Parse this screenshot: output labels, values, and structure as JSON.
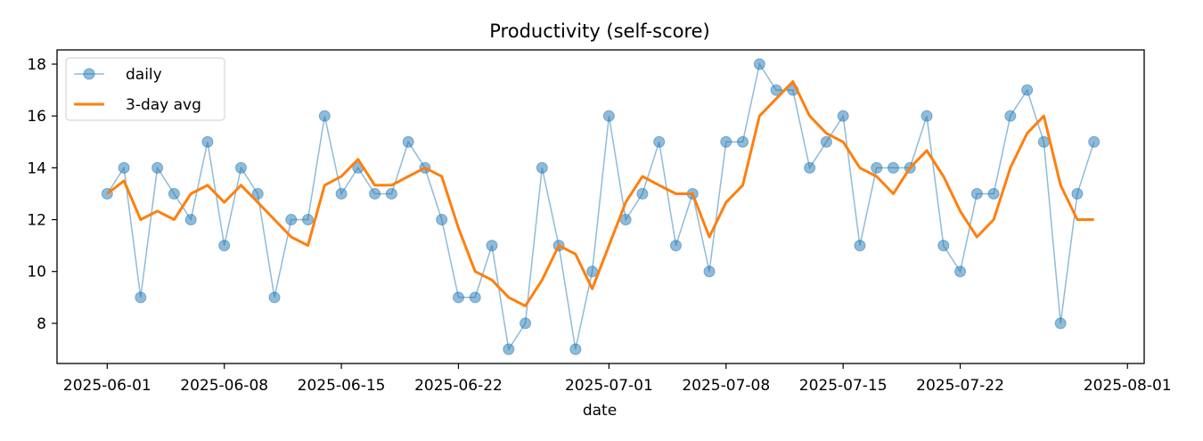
{
  "chart_data": {
    "type": "line",
    "title": "Productivity (self-score)",
    "xlabel": "date",
    "ylabel": "",
    "x_range": [
      "2025-05-29",
      "2025-08-02"
    ],
    "ylim": [
      6.45,
      18.55
    ],
    "x_ticks": [
      "2025-06-01",
      "2025-06-08",
      "2025-06-15",
      "2025-06-22",
      "2025-07-01",
      "2025-07-08",
      "2025-07-15",
      "2025-07-22",
      "2025-08-01"
    ],
    "y_ticks": [
      8,
      10,
      12,
      14,
      16,
      18
    ],
    "grid": false,
    "legend_position": "top-left",
    "x": [
      "2025-06-01",
      "2025-06-02",
      "2025-06-03",
      "2025-06-04",
      "2025-06-05",
      "2025-06-06",
      "2025-06-07",
      "2025-06-08",
      "2025-06-09",
      "2025-06-10",
      "2025-06-11",
      "2025-06-12",
      "2025-06-13",
      "2025-06-14",
      "2025-06-15",
      "2025-06-16",
      "2025-06-17",
      "2025-06-18",
      "2025-06-19",
      "2025-06-20",
      "2025-06-21",
      "2025-06-22",
      "2025-06-23",
      "2025-06-24",
      "2025-06-25",
      "2025-06-26",
      "2025-06-27",
      "2025-06-28",
      "2025-06-29",
      "2025-06-30",
      "2025-07-01",
      "2025-07-02",
      "2025-07-03",
      "2025-07-04",
      "2025-07-05",
      "2025-07-06",
      "2025-07-07",
      "2025-07-08",
      "2025-07-09",
      "2025-07-10",
      "2025-07-11",
      "2025-07-12",
      "2025-07-13",
      "2025-07-14",
      "2025-07-15",
      "2025-07-16",
      "2025-07-17",
      "2025-07-18",
      "2025-07-19",
      "2025-07-20",
      "2025-07-21",
      "2025-07-22",
      "2025-07-23",
      "2025-07-24",
      "2025-07-25",
      "2025-07-26",
      "2025-07-27",
      "2025-07-28",
      "2025-07-29",
      "2025-07-30"
    ],
    "series": [
      {
        "name": "daily",
        "style": "line-with-markers",
        "color": "#1f77b4",
        "values": [
          13,
          14,
          9,
          14,
          13,
          12,
          15,
          11,
          14,
          13,
          9,
          12,
          12,
          16,
          13,
          14,
          13,
          13,
          15,
          14,
          12,
          9,
          9,
          11,
          7,
          8,
          14,
          11,
          7,
          10,
          16,
          12,
          13,
          15,
          11,
          13,
          10,
          15,
          15,
          18,
          17,
          17,
          14,
          15,
          16,
          11,
          14,
          14,
          14,
          16,
          11,
          10,
          13,
          13,
          16,
          17,
          15,
          8,
          13,
          15
        ]
      },
      {
        "name": "3-day avg",
        "style": "line",
        "color": "#ff7f0e",
        "values": [
          13,
          13.5,
          12,
          12.33,
          12,
          13,
          13.33,
          12.67,
          13.33,
          12.67,
          12,
          11.33,
          11,
          13.33,
          13.67,
          14.33,
          13.33,
          13.33,
          13.67,
          14,
          13.67,
          11.67,
          10,
          9.67,
          9,
          8.67,
          9.67,
          11,
          10.67,
          9.33,
          11,
          12.67,
          13.67,
          13.33,
          13,
          13,
          11.33,
          12.67,
          13.33,
          16,
          16.67,
          17.33,
          16,
          15.33,
          15,
          14,
          13.67,
          13,
          14,
          14.67,
          13.67,
          12.33,
          11.33,
          12,
          14,
          15.33,
          16,
          13.33,
          12,
          12
        ]
      }
    ]
  }
}
